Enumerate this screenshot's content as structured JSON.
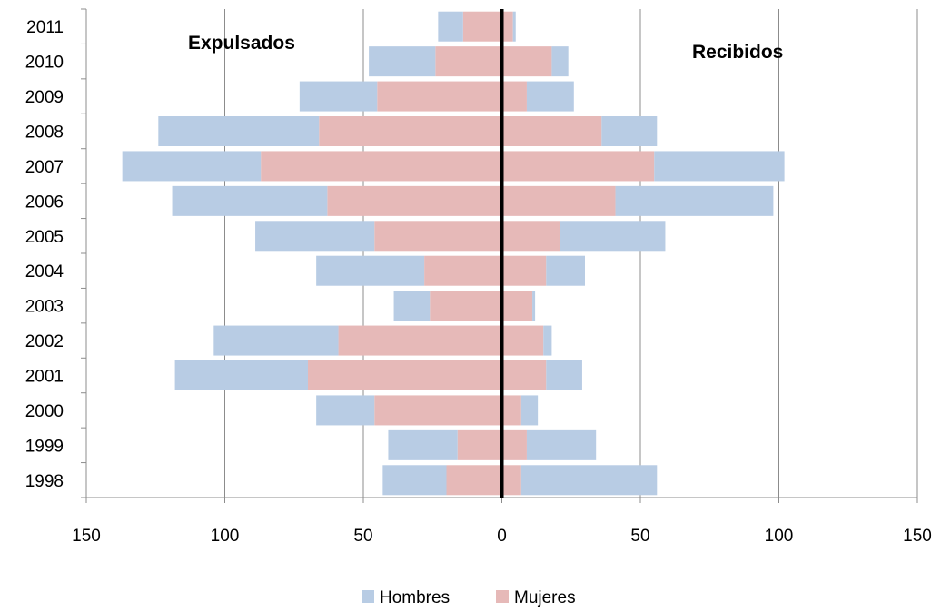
{
  "chart_data": {
    "type": "bar",
    "orientation": "horizontal",
    "layout": "population-pyramid",
    "categories": [
      "2011",
      "2010",
      "2009",
      "2008",
      "2007",
      "2006",
      "2005",
      "2004",
      "2003",
      "2002",
      "2001",
      "2000",
      "1999",
      "1998"
    ],
    "left_label": "Expulsados",
    "right_label": "Recibidos",
    "series": [
      {
        "name": "Hombres",
        "color": "#b8cce4",
        "left": [
          9,
          24,
          28,
          58,
          50,
          56,
          43,
          39,
          13,
          45,
          48,
          21,
          25,
          23
        ],
        "right": [
          1,
          6,
          17,
          20,
          47,
          57,
          38,
          14,
          1,
          3,
          13,
          6,
          25,
          49
        ]
      },
      {
        "name": "Mujeres",
        "color": "#e6b9b8",
        "left": [
          14,
          24,
          45,
          66,
          87,
          63,
          46,
          28,
          26,
          59,
          70,
          46,
          16,
          20
        ],
        "right": [
          4,
          18,
          9,
          36,
          55,
          41,
          21,
          16,
          11,
          15,
          16,
          7,
          9,
          7
        ]
      }
    ],
    "x_ticks": [
      "150",
      "100",
      "50",
      "0",
      "50",
      "100",
      "150"
    ],
    "xlim": [
      -150,
      150
    ],
    "grid": true,
    "legend_position": "bottom"
  }
}
